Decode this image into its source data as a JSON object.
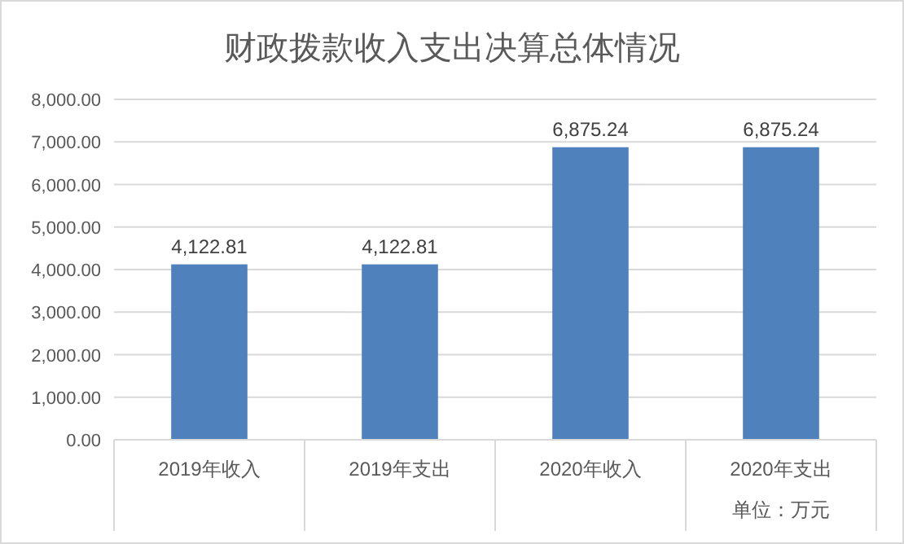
{
  "chart_data": {
    "type": "bar",
    "title": "财政拨款收入支出决算总体情况",
    "categories": [
      "2019年收入",
      "2019年支出",
      "2020年收入",
      "2020年支出"
    ],
    "values": [
      4122.81,
      4122.81,
      6875.24,
      6875.24
    ],
    "color": "#4f81bd",
    "value_labels": [
      "4,122.81",
      "4,122.81",
      "6,875.24",
      "6,875.24"
    ],
    "ylim": [
      0,
      8000
    ],
    "yticks": [
      {
        "value": 0,
        "label": "0.00"
      },
      {
        "value": 1000,
        "label": "1,000.00"
      },
      {
        "value": 2000,
        "label": "2,000.00"
      },
      {
        "value": 3000,
        "label": "3,000.00"
      },
      {
        "value": 4000,
        "label": "4,000.00"
      },
      {
        "value": 5000,
        "label": "5,000.00"
      },
      {
        "value": 6000,
        "label": "6,000.00"
      },
      {
        "value": 7000,
        "label": "7,000.00"
      },
      {
        "value": 8000,
        "label": "8,000.00"
      }
    ],
    "grid": "y",
    "annotations": [
      "单位：万元"
    ]
  }
}
